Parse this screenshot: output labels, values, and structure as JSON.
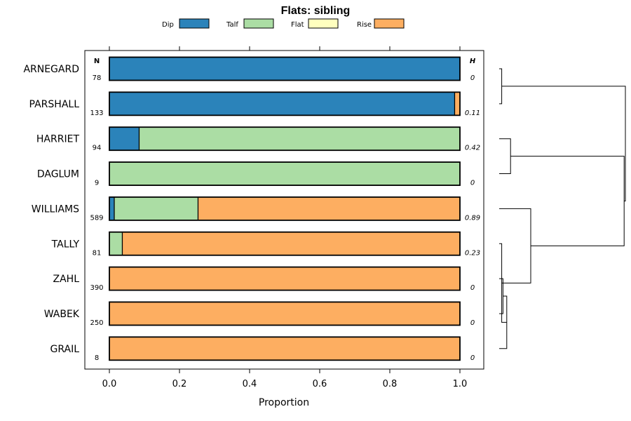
{
  "chart_data": {
    "type": "bar",
    "orientation": "horizontal-stacked",
    "title": "Flats: sibling",
    "xlabel": "Proportion",
    "xlim": [
      0,
      1
    ],
    "xticks": [
      "0.0",
      "0.2",
      "0.4",
      "0.6",
      "0.8",
      "1.0"
    ],
    "n_header": "N",
    "h_header": "H",
    "legend": [
      {
        "name": "Dip",
        "color": "#2b83ba"
      },
      {
        "name": "Talf",
        "color": "#abdda4"
      },
      {
        "name": "Flat",
        "color": "#ffffbf"
      },
      {
        "name": "Rise",
        "color": "#fdae61"
      }
    ],
    "rows": [
      {
        "label": "ARNEGARD",
        "n": "78",
        "h": "0",
        "values": [
          1.0,
          0.0,
          0.0,
          0.0
        ]
      },
      {
        "label": "PARSHALL",
        "n": "133",
        "h": "0.11",
        "values": [
          0.985,
          0.0,
          0.0,
          0.015
        ]
      },
      {
        "label": "HARRIET",
        "n": "94",
        "h": "0.42",
        "values": [
          0.085,
          0.915,
          0.0,
          0.0
        ]
      },
      {
        "label": "DAGLUM",
        "n": "9",
        "h": "0",
        "values": [
          0.0,
          1.0,
          0.0,
          0.0
        ]
      },
      {
        "label": "WILLIAMS",
        "n": "589",
        "h": "0.89",
        "values": [
          0.014,
          0.239,
          0.0,
          0.747
        ]
      },
      {
        "label": "TALLY",
        "n": "81",
        "h": "0.23",
        "values": [
          0.0,
          0.037,
          0.0,
          0.963
        ]
      },
      {
        "label": "ZAHL",
        "n": "390",
        "h": "0",
        "values": [
          0.0,
          0.0,
          0.0,
          1.0
        ]
      },
      {
        "label": "WABEK",
        "n": "250",
        "h": "0",
        "values": [
          0.0,
          0.0,
          0.0,
          1.0
        ]
      },
      {
        "label": "GRAIL",
        "n": "8",
        "h": "0",
        "values": [
          0.0,
          0.0,
          0.0,
          1.0
        ]
      }
    ],
    "dendrogram": {
      "leaves": [
        "ARNEGARD",
        "PARSHALL",
        "HARRIET",
        "DAGLUM",
        "WILLIAMS",
        "TALLY",
        "ZAHL",
        "WABEK",
        "GRAIL"
      ],
      "merges": [
        {
          "a": "ARNEGARD",
          "b": "PARSHALL",
          "height": 0.02
        },
        {
          "a": "HARRIET",
          "b": "DAGLUM",
          "height": 0.09
        },
        {
          "a": "ZAHL",
          "b": "WABEK",
          "height": 0.03
        },
        {
          "a": "ZAHL+WABEK",
          "b": "GRAIL",
          "height": 0.06
        },
        {
          "a": "TALLY",
          "b": "ZAHL+WABEK+GRAIL",
          "height": 0.02
        },
        {
          "a": "WILLIAMS",
          "b": "TALLY+ZAHL+WABEK+GRAIL",
          "height": 0.25
        },
        {
          "a": "HARRIET+DAGLUM",
          "b": "WILLIAMS+TALLY+ZAHL+WABEK+GRAIL",
          "height": 0.99
        },
        {
          "a": "ARNEGARD+PARSHALL",
          "b": "HARRIET+DAGLUM+WILLIAMS+TALLY+ZAHL+WABEK+GRAIL",
          "height": 1.0
        }
      ]
    }
  }
}
